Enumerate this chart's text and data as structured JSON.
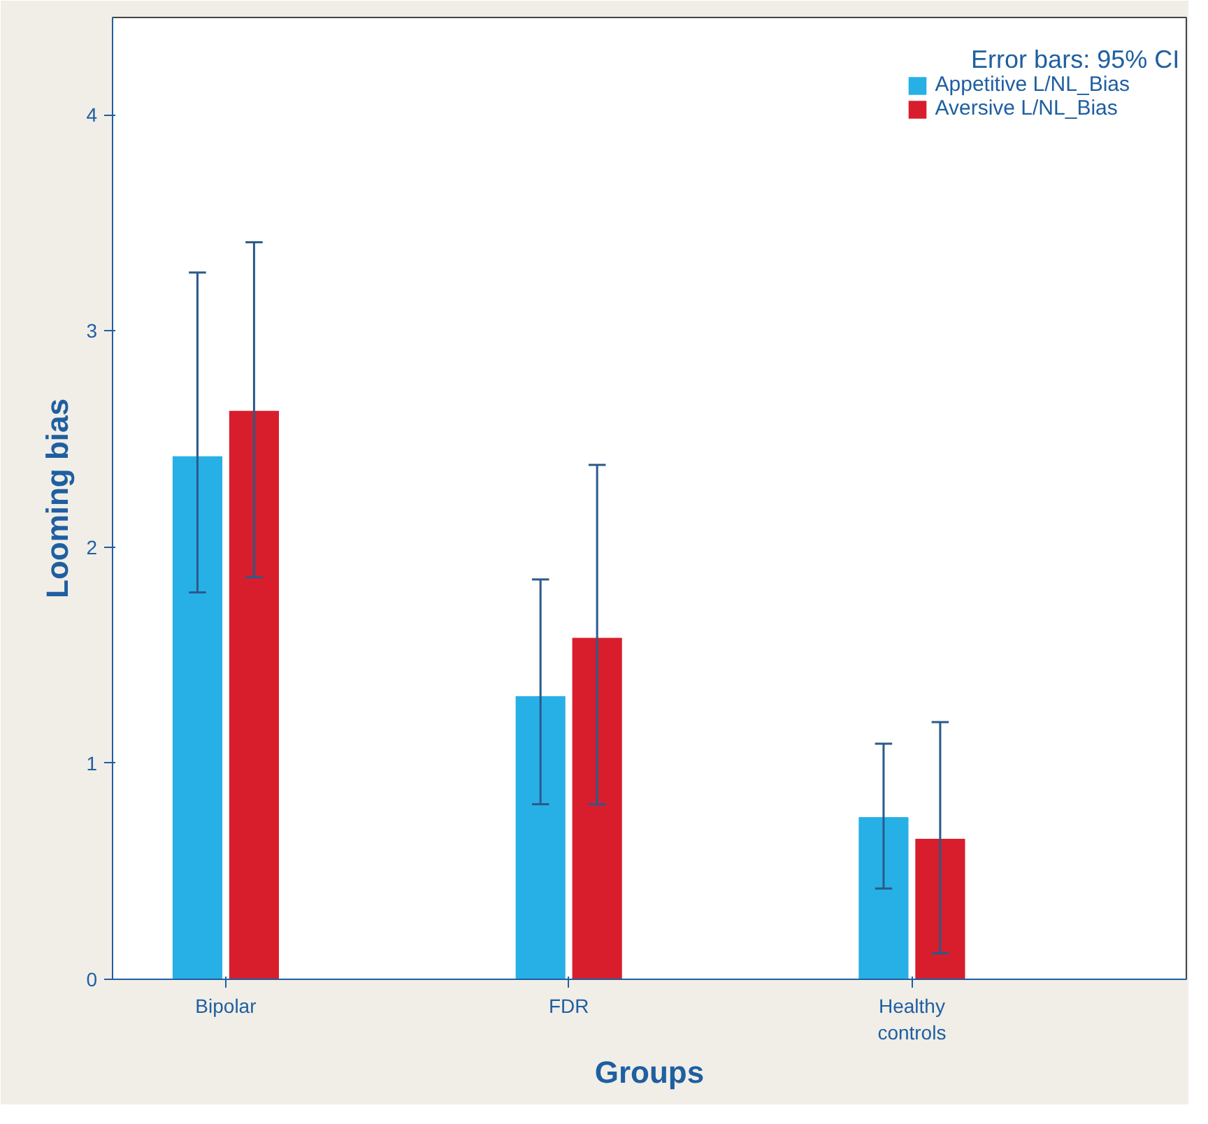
{
  "chart_data": {
    "type": "bar",
    "xlabel": "Groups",
    "ylabel": "Looming bias",
    "categories": [
      "Bipolar",
      "FDR",
      "Healthy controls"
    ],
    "series": [
      {
        "name": "Appetitive L/NL_Bias",
        "color": "#27b0e6",
        "values": [
          2.42,
          1.31,
          0.75
        ],
        "errors": [
          [
            1.79,
            3.27
          ],
          [
            0.81,
            1.85
          ],
          [
            0.42,
            1.09
          ]
        ]
      },
      {
        "name": "Aversive L/NL_Bias",
        "color": "#d81e2c",
        "values": [
          2.63,
          1.58,
          0.65
        ],
        "errors": [
          [
            1.86,
            3.41
          ],
          [
            0.81,
            2.38
          ],
          [
            0.12,
            1.19
          ]
        ]
      }
    ],
    "ylim": [
      0,
      4.45
    ],
    "yticks": [
      0,
      1,
      2,
      3,
      4
    ],
    "grid": false,
    "legend": "top right",
    "annotations": [
      "Error bars: 95% CI"
    ]
  }
}
